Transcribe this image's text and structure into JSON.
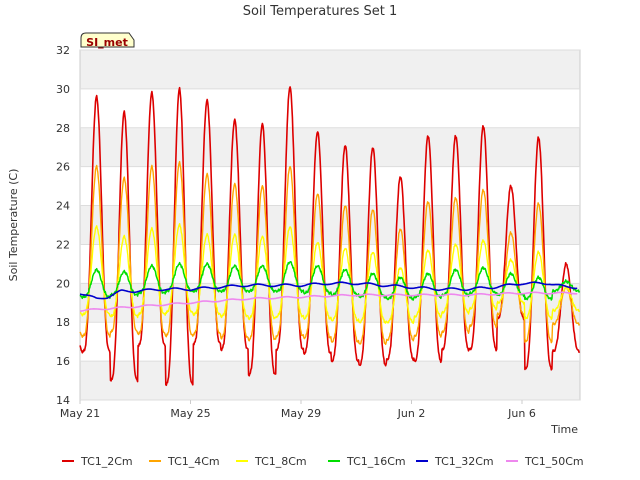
{
  "chart_data": {
    "type": "line",
    "title": "Soil Temperatures Set 1",
    "xlabel": "Time",
    "ylabel": "Soil Temperature (C)",
    "badge": "SI_met",
    "ylim": [
      14,
      32
    ],
    "yticks": [
      14,
      16,
      18,
      20,
      22,
      24,
      26,
      28,
      30,
      32
    ],
    "xlim_days": [
      0,
      18.1
    ],
    "xticks": [
      {
        "day": 0,
        "label": "May 21"
      },
      {
        "day": 4,
        "label": "May 25"
      },
      {
        "day": 8,
        "label": "May 29"
      },
      {
        "day": 12,
        "label": "Jun 2"
      },
      {
        "day": 16,
        "label": "Jun 6"
      }
    ],
    "grid": true,
    "band_fill": "#f0f0f0",
    "legend_position": "bottom",
    "days": 18,
    "daily_peak_day_offset": 0.6,
    "series": [
      {
        "name": "TC1_2Cm",
        "color": "#dd0000",
        "width": 1.6,
        "daily_max": [
          29.6,
          28.8,
          29.8,
          30.0,
          29.4,
          28.4,
          28.2,
          30.1,
          27.8,
          27.1,
          27.0,
          25.5,
          27.6,
          27.6,
          28.1,
          25.0,
          27.5,
          21.0
        ],
        "daily_min": [
          16.5,
          15.0,
          16.8,
          14.8,
          16.9,
          16.6,
          15.3,
          16.6,
          16.4,
          16.0,
          15.8,
          16.1,
          16.0,
          16.6,
          16.6,
          18.2,
          15.6,
          16.5
        ]
      },
      {
        "name": "TC1_4Cm",
        "color": "#ffa500",
        "width": 1.4,
        "daily_max": [
          26.0,
          25.4,
          26.0,
          26.2,
          25.6,
          25.1,
          25.0,
          26.0,
          24.6,
          24.0,
          23.8,
          22.8,
          24.2,
          24.4,
          24.8,
          22.6,
          24.1,
          19.8
        ],
        "daily_min": [
          17.3,
          17.5,
          17.4,
          17.3,
          17.4,
          17.2,
          17.1,
          17.3,
          17.2,
          17.0,
          16.9,
          17.1,
          17.3,
          17.5,
          17.8,
          18.4,
          17.0,
          17.9
        ]
      },
      {
        "name": "TC1_8Cm",
        "color": "#ffff00",
        "width": 1.4,
        "daily_max": [
          22.9,
          22.4,
          22.8,
          23.0,
          22.5,
          22.5,
          22.4,
          22.9,
          22.1,
          21.8,
          21.6,
          20.8,
          21.7,
          22.0,
          22.2,
          21.2,
          21.6,
          19.8
        ],
        "daily_min": [
          18.4,
          18.3,
          18.4,
          18.5,
          18.4,
          18.3,
          18.2,
          18.3,
          18.2,
          18.1,
          18.0,
          18.0,
          18.3,
          18.5,
          18.7,
          19.0,
          18.2,
          18.6
        ]
      },
      {
        "name": "TC1_16Cm",
        "color": "#00dd00",
        "width": 1.5,
        "daily_max": [
          20.7,
          20.6,
          20.9,
          21.0,
          21.0,
          20.9,
          20.9,
          21.1,
          20.9,
          20.7,
          20.5,
          20.3,
          20.5,
          20.7,
          20.8,
          20.5,
          20.3,
          20.1
        ],
        "daily_min": [
          19.3,
          19.4,
          19.5,
          19.6,
          19.6,
          19.6,
          19.6,
          19.6,
          19.5,
          19.4,
          19.3,
          19.2,
          19.3,
          19.4,
          19.5,
          19.4,
          19.2,
          19.6
        ]
      },
      {
        "name": "TC1_32Cm",
        "color": "#0000cc",
        "width": 1.6,
        "x": [
          0,
          0.6,
          1,
          1.5,
          2,
          3,
          4,
          5,
          6,
          7,
          8,
          9,
          10,
          11,
          12,
          13,
          14,
          15,
          16,
          17,
          17.6,
          18
        ],
        "y": [
          19.5,
          19.2,
          19.3,
          19.6,
          19.6,
          19.7,
          19.7,
          19.8,
          19.9,
          19.9,
          19.9,
          20.0,
          20.0,
          19.9,
          19.8,
          19.7,
          19.7,
          19.8,
          20.0,
          20.0,
          19.8,
          19.8
        ],
        "wobble": 0.06
      },
      {
        "name": "TC1_50Cm",
        "color": "#ee88ee",
        "width": 1.6,
        "x": [
          0,
          2,
          4,
          6,
          8,
          10,
          12,
          14,
          16,
          18
        ],
        "y": [
          18.6,
          18.8,
          19.0,
          19.2,
          19.3,
          19.4,
          19.4,
          19.4,
          19.5,
          19.5
        ],
        "wobble": 0.04
      }
    ]
  }
}
